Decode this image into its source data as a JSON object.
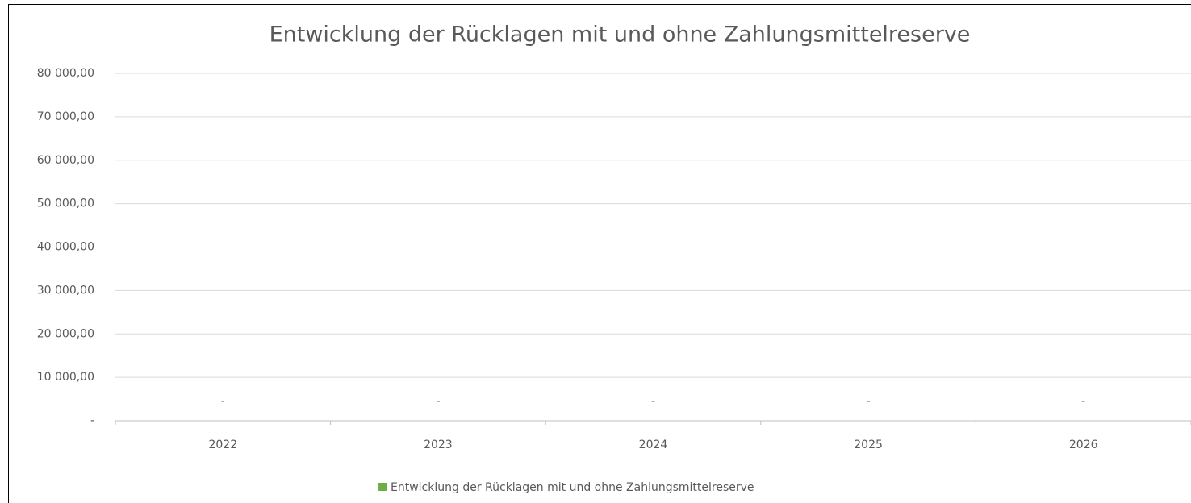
{
  "chart_data": {
    "type": "bar",
    "title": "Entwicklung der Rücklagen mit und ohne Zahlungsmittelreserve",
    "categories": [
      "2022",
      "2023",
      "2024",
      "2025",
      "2026"
    ],
    "series": [
      {
        "name": "Entwicklung der Rücklagen mit und ohne Zahlungsmittelreserve",
        "color": "#70ad47",
        "values": [
          0,
          0,
          0,
          0,
          0
        ],
        "value_labels": [
          "-",
          "-",
          "-",
          "-",
          "-"
        ]
      }
    ],
    "ylim": [
      0,
      80000
    ],
    "yticks": [
      {
        "value": 0,
        "label": "-"
      },
      {
        "value": 10000,
        "label": "10 000,00"
      },
      {
        "value": 20000,
        "label": "20 000,00"
      },
      {
        "value": 30000,
        "label": "30 000,00"
      },
      {
        "value": 40000,
        "label": "40 000,00"
      },
      {
        "value": 50000,
        "label": "50 000,00"
      },
      {
        "value": 60000,
        "label": "60 000,00"
      },
      {
        "value": 70000,
        "label": "70 000,00"
      },
      {
        "value": 80000,
        "label": "80 000,00"
      }
    ],
    "grid": true,
    "legend": "bottom"
  }
}
